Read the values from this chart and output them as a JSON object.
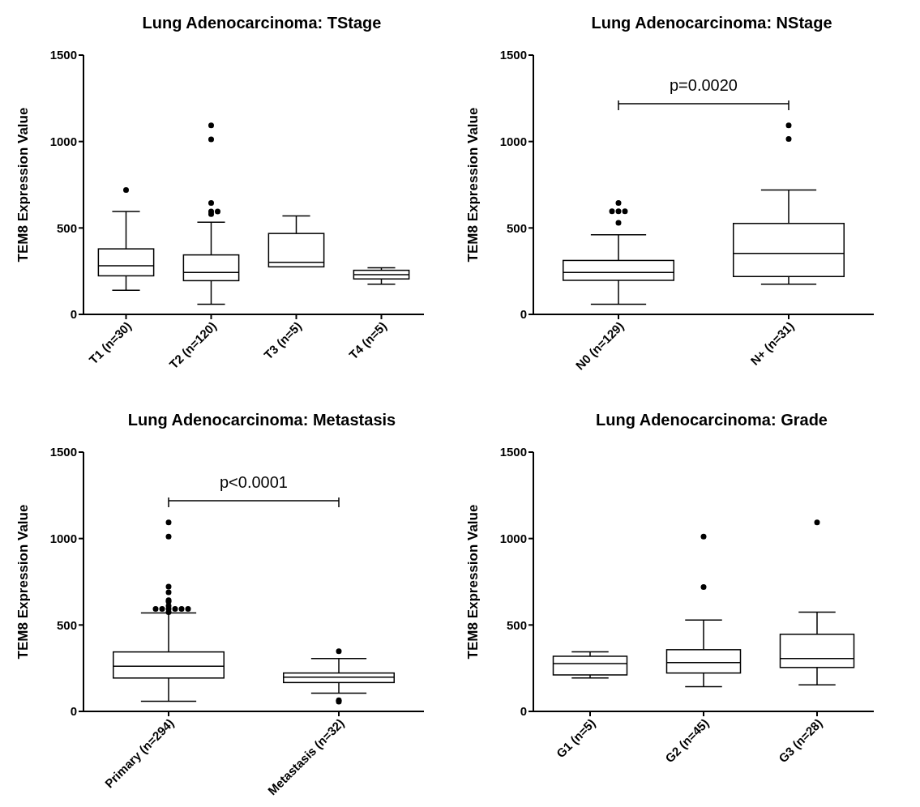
{
  "chart_data": [
    {
      "type": "box",
      "title": "Lung Adenocarcinoma: TStage",
      "ylabel": "TEM8 Expression Value",
      "categories": [
        "T1 (n=30)",
        "T2 (n=120)",
        "T3 (n=5)",
        "T4 (n=5)"
      ],
      "ylim": [
        0,
        1500
      ],
      "yticks": [
        0,
        500,
        1000,
        1500
      ],
      "color": "#000000",
      "boxes": [
        {
          "low": 139,
          "q1": 223,
          "median": 281,
          "q3": 379,
          "high": 595,
          "outliers": [
            719
          ]
        },
        {
          "low": 59,
          "q1": 195,
          "median": 242,
          "q3": 344,
          "high": 533,
          "outliers": [
            580,
            595,
            595,
            645,
            1013,
            1093
          ]
        },
        {
          "low": 275,
          "q1": 275,
          "median": 301,
          "q3": 468,
          "high": 569
        },
        {
          "low": 175,
          "q1": 205,
          "median": 230,
          "q3": 255,
          "high": 270
        }
      ]
    },
    {
      "type": "box",
      "title": "Lung Adenocarcinoma: NStage",
      "ylabel": "TEM8 Expression Value",
      "categories": [
        "N0 (n=129)",
        "N+ (n=31)"
      ],
      "ylim": [
        0,
        1500
      ],
      "yticks": [
        0,
        500,
        1000,
        1500
      ],
      "color": "#000000",
      "annotations": [
        "p=0.0020"
      ],
      "boxes": [
        {
          "low": 59,
          "q1": 197,
          "median": 242,
          "q3": 312,
          "high": 461,
          "outliers": [
            530,
            597,
            597,
            597,
            645
          ]
        },
        {
          "low": 175,
          "q1": 219,
          "median": 353,
          "q3": 526,
          "high": 719,
          "outliers": [
            1015,
            1093
          ]
        }
      ]
    },
    {
      "type": "box",
      "title": "Lung Adenocarcinoma: Metastasis",
      "ylabel": "TEM8 Expression Value",
      "categories": [
        "Primary (n=294)",
        "Metastasis (n=32)"
      ],
      "ylim": [
        0,
        1500
      ],
      "yticks": [
        0,
        500,
        1000,
        1500
      ],
      "color": "#000000",
      "annotations": [
        "p<0.0001"
      ],
      "boxes": [
        {
          "low": 59,
          "q1": 193,
          "median": 261,
          "q3": 344,
          "high": 570,
          "outliers": [
            574,
            593,
            593,
            593,
            593,
            593,
            593,
            611,
            635,
            643,
            689,
            722,
            1011,
            1093
          ]
        },
        {
          "low": 106,
          "q1": 167,
          "median": 198,
          "q3": 222,
          "high": 306,
          "outliers": [
            56,
            65,
            348
          ]
        }
      ]
    },
    {
      "type": "box",
      "title": "Lung Adenocarcinoma: Grade",
      "ylabel": "TEM8 Expression Value",
      "categories": [
        "G1 (n=5)",
        "G2 (n=45)",
        "G3 (n=28)"
      ],
      "ylim": [
        0,
        1500
      ],
      "yticks": [
        0,
        500,
        1000,
        1500
      ],
      "color": "#000000",
      "boxes": [
        {
          "low": 193,
          "q1": 211,
          "median": 276,
          "q3": 319,
          "high": 344
        },
        {
          "low": 143,
          "q1": 222,
          "median": 283,
          "q3": 357,
          "high": 528,
          "outliers": [
            719,
            1011
          ]
        },
        {
          "low": 154,
          "q1": 254,
          "median": 306,
          "q3": 446,
          "high": 574,
          "outliers": [
            1093
          ]
        }
      ]
    }
  ]
}
